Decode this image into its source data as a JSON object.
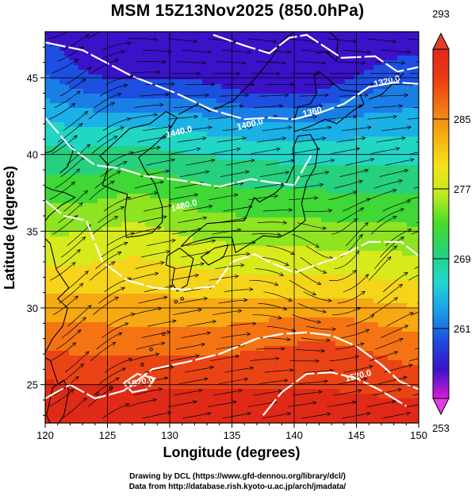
{
  "title": "MSM 15Z13Nov2025 (850.0hPa)",
  "map": {
    "xlabel": "Longitude (degrees)",
    "ylabel": "Latitude  (degrees)",
    "lon_range": [
      120,
      150
    ],
    "lat_range": [
      22.5,
      48
    ],
    "lon_ticks": [
      "120",
      "125",
      "130",
      "135",
      "140",
      "145",
      "150"
    ],
    "lat_ticks": [
      "25",
      "30",
      "35",
      "40",
      "45"
    ],
    "contour_labels": [
      {
        "text": "1320.0",
        "lon": 147.5,
        "lat": 44.6
      },
      {
        "text": "1400.0",
        "lon": 136.5,
        "lat": 41.8
      },
      {
        "text": "1360",
        "lon": 141.5,
        "lat": 42.6
      },
      {
        "text": "1440.0",
        "lon": 130.8,
        "lat": 41.3
      },
      {
        "text": "1480.0",
        "lon": 131.2,
        "lat": 36.5
      },
      {
        "text": "1520.0",
        "lon": 145.2,
        "lat": 25.4
      },
      {
        "text": "1520.0",
        "lon": 127.7,
        "lat": 25.0
      }
    ]
  },
  "colorbar": {
    "min": 253,
    "max": 293,
    "tick_labels": [
      "293",
      "285",
      "277",
      "269",
      "261",
      "253"
    ],
    "colors": [
      "#d61fd6",
      "#3a12c8",
      "#1d4fe0",
      "#1b9de8",
      "#21d7d0",
      "#25d27a",
      "#46dc2a",
      "#c0ea1e",
      "#f5e21a",
      "#f7b011",
      "#f47514",
      "#ea3a14",
      "#e02a18"
    ]
  },
  "credits": {
    "line1": "Drawing by DCL (https://www.gfd-dennou.org/library/dcl/)",
    "line2": "Data from http://database.rish.kyoto-u.ac.jp/arch/jmadata/"
  }
}
